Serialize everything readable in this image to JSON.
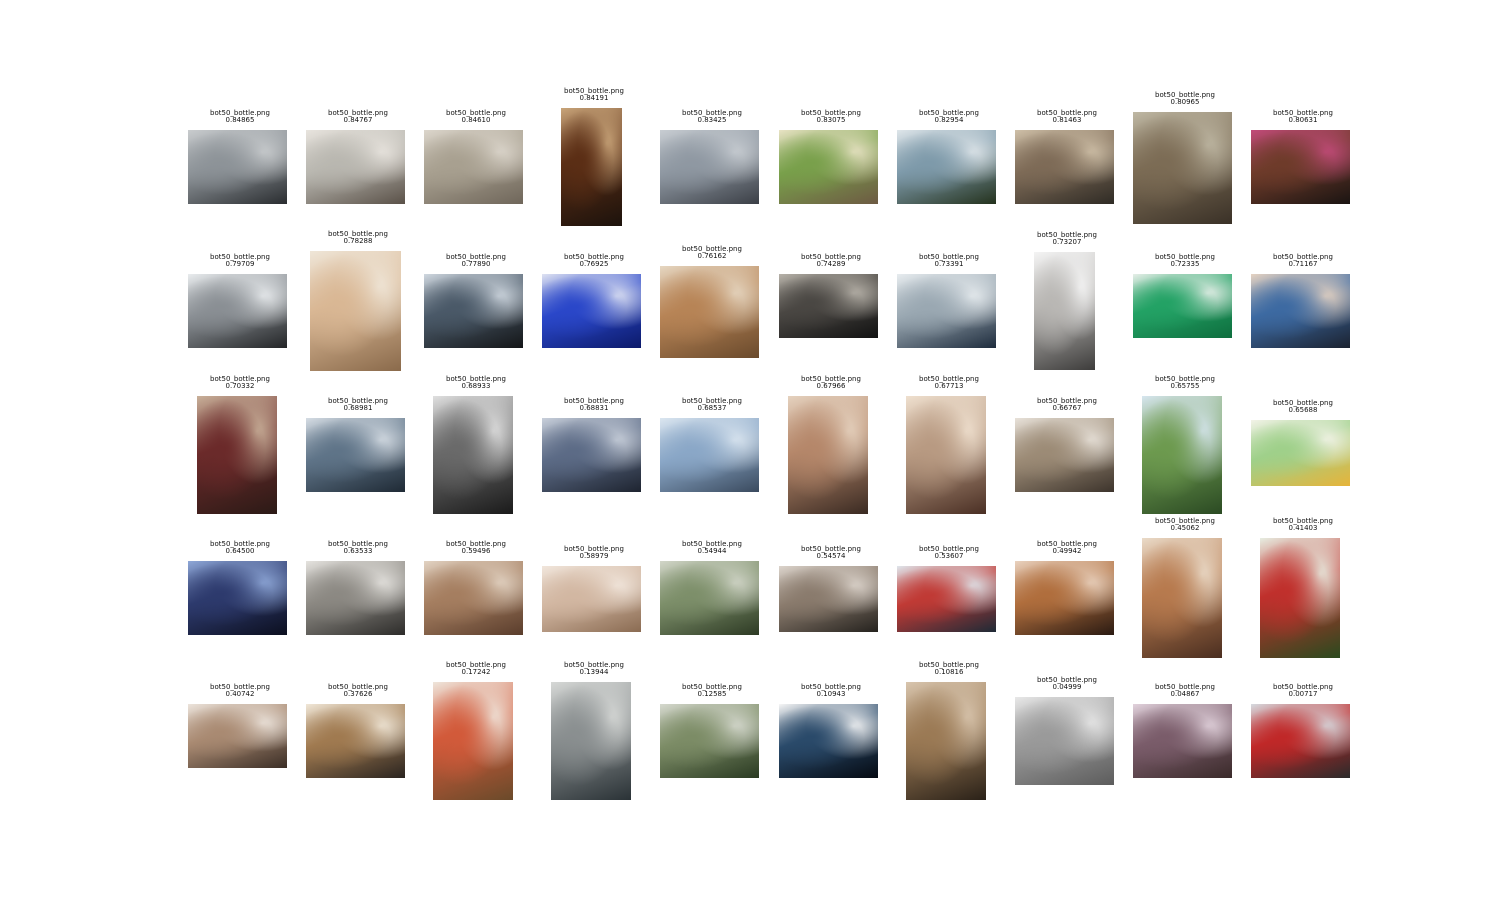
{
  "figure": {
    "items": [
      {
        "file": "bot50_bottle.png",
        "score": "0.84865",
        "shape": "land",
        "colors": [
          "#2a2d30",
          "#8d9398",
          "#c9ccce"
        ]
      },
      {
        "file": "bot50_bottle.png",
        "score": "0.84767",
        "shape": "land",
        "colors": [
          "#5a5148",
          "#b9b7b0",
          "#e8e4de"
        ]
      },
      {
        "file": "bot50_bottle.png",
        "score": "0.84610",
        "shape": "land",
        "colors": [
          "#6f665a",
          "#a8a090",
          "#dcd6cc"
        ]
      },
      {
        "file": "bot50_bottle.png",
        "score": "0.84191",
        "shape": "tall",
        "colors": [
          "#1c120c",
          "#5b2e15",
          "#c9a57a"
        ]
      },
      {
        "file": "bot50_bottle.png",
        "score": "0.83425",
        "shape": "land",
        "colors": [
          "#3b3f46",
          "#8f98a2",
          "#c8cdd2"
        ]
      },
      {
        "file": "bot50_bottle.png",
        "score": "0.83075",
        "shape": "land",
        "colors": [
          "#6d5a43",
          "#79a04b",
          "#e9e3c5"
        ]
      },
      {
        "file": "bot50_bottle.png",
        "score": "0.82954",
        "shape": "land",
        "colors": [
          "#24321d",
          "#7e9aaa",
          "#dfe6ea"
        ]
      },
      {
        "file": "bot50_bottle.png",
        "score": "0.81463",
        "shape": "land",
        "colors": [
          "#2f2b25",
          "#7e6b57",
          "#cfc0a8"
        ]
      },
      {
        "file": "bot50_bottle.png",
        "score": "0.80965",
        "shape": "mid",
        "colors": [
          "#3a3127",
          "#7c6c55",
          "#bfb8a4"
        ]
      },
      {
        "file": "bot50_bottle.png",
        "score": "0.80631",
        "shape": "land",
        "colors": [
          "#1a1412",
          "#6e3b2a",
          "#c24b7a"
        ]
      },
      {
        "file": "bot50_bottle.png",
        "score": "0.79709",
        "shape": "land",
        "colors": [
          "#232527",
          "#8a8f94",
          "#e9ecee"
        ]
      },
      {
        "file": "bot50_bottle.png",
        "score": "0.78288",
        "shape": "tall2",
        "colors": [
          "#8a6a4b",
          "#d9b794",
          "#efe6d8"
        ]
      },
      {
        "file": "bot50_bottle.png",
        "score": "0.77890",
        "shape": "land",
        "colors": [
          "#141618",
          "#4a5968",
          "#d0d8e0"
        ]
      },
      {
        "file": "bot50_bottle.png",
        "score": "0.76925",
        "shape": "land",
        "colors": [
          "#0c1a6a",
          "#2a47c9",
          "#dfe3f2"
        ]
      },
      {
        "file": "bot50_bottle.png",
        "score": "0.76162",
        "shape": "mid2",
        "colors": [
          "#6a4a2c",
          "#b78456",
          "#e6d7c2"
        ]
      },
      {
        "file": "bot50_bottle.png",
        "score": "0.74289",
        "shape": "land2",
        "colors": [
          "#121212",
          "#4a4743",
          "#b8b3aa"
        ]
      },
      {
        "file": "bot50_bottle.png",
        "score": "0.73391",
        "shape": "land",
        "colors": [
          "#1e2c3d",
          "#9aa8b2",
          "#e7ecef"
        ]
      },
      {
        "file": "bot50_bottle.png",
        "score": "0.73207",
        "shape": "tall",
        "colors": [
          "#3d3c3b",
          "#b9b7b4",
          "#f4f4f4"
        ]
      },
      {
        "file": "bot50_bottle.png",
        "score": "0.72335",
        "shape": "land2",
        "colors": [
          "#0e6e3e",
          "#23a265",
          "#e7efe9"
        ]
      },
      {
        "file": "bot50_bottle.png",
        "score": "0.71167",
        "shape": "land",
        "colors": [
          "#1b2230",
          "#3d6aa2",
          "#e6d3c2"
        ]
      },
      {
        "file": "bot50_bottle.png",
        "score": "0.70332",
        "shape": "tall3",
        "colors": [
          "#2b1a16",
          "#6b2a2a",
          "#c9b19a"
        ]
      },
      {
        "file": "bot50_bottle.png",
        "score": "0.68981",
        "shape": "land",
        "colors": [
          "#1f2a35",
          "#5f7488",
          "#d6dde4"
        ]
      },
      {
        "file": "bot50_bottle.png",
        "score": "0.68933",
        "shape": "tall3",
        "colors": [
          "#1a1a1a",
          "#6a6a6a",
          "#e0e0e0"
        ]
      },
      {
        "file": "bot50_bottle.png",
        "score": "0.68831",
        "shape": "land",
        "colors": [
          "#1e2430",
          "#5c6b86",
          "#c9d0db"
        ]
      },
      {
        "file": "bot50_bottle.png",
        "score": "0.68537",
        "shape": "land",
        "colors": [
          "#3a4a5e",
          "#8aa7c7",
          "#dbe6f0"
        ]
      },
      {
        "file": "bot50_bottle.png",
        "score": "0.67966",
        "shape": "tall3",
        "colors": [
          "#3a2a22",
          "#b5876a",
          "#e5d2bf"
        ]
      },
      {
        "file": "bot50_bottle.png",
        "score": "0.67713",
        "shape": "tall3",
        "colors": [
          "#4a2f24",
          "#b89a82",
          "#efe0cf"
        ]
      },
      {
        "file": "bot50_bottle.png",
        "score": "0.66767",
        "shape": "land",
        "colors": [
          "#3d342c",
          "#9c8b76",
          "#e8e2da"
        ]
      },
      {
        "file": "bot50_bottle.png",
        "score": "0.65755",
        "shape": "tall3",
        "colors": [
          "#2b4a23",
          "#6d9a4f",
          "#d7e6f0"
        ]
      },
      {
        "file": "bot50_bottle.png",
        "score": "0.65688",
        "shape": "land3",
        "colors": [
          "#e6b43a",
          "#9fd08a",
          "#f3f3e8"
        ]
      },
      {
        "file": "bot50_bottle.png",
        "score": "0.64500",
        "shape": "land",
        "colors": [
          "#0c0f1f",
          "#2d3a6d",
          "#8fa8d8"
        ]
      },
      {
        "file": "bot50_bottle.png",
        "score": "0.63533",
        "shape": "land",
        "colors": [
          "#2d2c2a",
          "#8c8983",
          "#e5e3df"
        ]
      },
      {
        "file": "bot50_bottle.png",
        "score": "0.59496",
        "shape": "land",
        "colors": [
          "#5a3d2c",
          "#a57e60",
          "#e2d3c3"
        ]
      },
      {
        "file": "bot50_bottle.png",
        "score": "0.58979",
        "shape": "land4",
        "colors": [
          "#8a6b52",
          "#d2b7a2",
          "#f1e6dc"
        ]
      },
      {
        "file": "bot50_bottle.png",
        "score": "0.54944",
        "shape": "land",
        "colors": [
          "#2d3a24",
          "#7d8f6a",
          "#d2d6c9"
        ]
      },
      {
        "file": "bot50_bottle.png",
        "score": "0.54574",
        "shape": "land4",
        "colors": [
          "#25221e",
          "#8a7b6d",
          "#dcd4cc"
        ]
      },
      {
        "file": "bot50_bottle.png",
        "score": "0.53607",
        "shape": "land4",
        "colors": [
          "#1e2a36",
          "#c03a35",
          "#dfe6ec"
        ]
      },
      {
        "file": "bot50_bottle.png",
        "score": "0.49942",
        "shape": "land",
        "colors": [
          "#2a1a12",
          "#b06e3d",
          "#e9d2bf"
        ]
      },
      {
        "file": "bot50_bottle.png",
        "score": "0.45062",
        "shape": "tall3b",
        "colors": [
          "#4a2e20",
          "#b77a4e",
          "#eadbc9"
        ]
      },
      {
        "file": "bot50_bottle.png",
        "score": "0.41403",
        "shape": "tall3b",
        "colors": [
          "#2a4a1e",
          "#c0302c",
          "#e7eee2"
        ]
      },
      {
        "file": "bot50_bottle.png",
        "score": "0.40742",
        "shape": "land2",
        "colors": [
          "#3b2e26",
          "#a98a72",
          "#ece4dc"
        ]
      },
      {
        "file": "bot50_bottle.png",
        "score": "0.37626",
        "shape": "land",
        "colors": [
          "#2a2420",
          "#a07a50",
          "#f0e7d8"
        ]
      },
      {
        "file": "bot50_bottle.png",
        "score": "0.17242",
        "shape": "tall3",
        "colors": [
          "#6a4a2a",
          "#d25a3a",
          "#efe6dc"
        ]
      },
      {
        "file": "bot50_bottle.png",
        "score": "0.13944",
        "shape": "tall3",
        "colors": [
          "#2a3236",
          "#8a8f90",
          "#d6d8d6"
        ]
      },
      {
        "file": "bot50_bottle.png",
        "score": "0.12585",
        "shape": "land",
        "colors": [
          "#2a3a22",
          "#7c8c66",
          "#d6d9cf"
        ]
      },
      {
        "file": "bot50_bottle.png",
        "score": "0.10943",
        "shape": "land",
        "colors": [
          "#050a12",
          "#2a4a6a",
          "#f6f6f6"
        ]
      },
      {
        "file": "bot50_bottle.png",
        "score": "0.10816",
        "shape": "tall3",
        "colors": [
          "#2a2118",
          "#9b7a55",
          "#d8c5ae"
        ]
      },
      {
        "file": "bot50_bottle.png",
        "score": "0.04999",
        "shape": "mid3",
        "colors": [
          "#5c5c5c",
          "#9a9a9a",
          "#e8e8e8"
        ]
      },
      {
        "file": "bot50_bottle.png",
        "score": "0.04867",
        "shape": "land",
        "colors": [
          "#3a2a2a",
          "#7a5c6a",
          "#e2d3dd"
        ]
      },
      {
        "file": "bot50_bottle.png",
        "score": "0.00717",
        "shape": "land",
        "colors": [
          "#2a2a2a",
          "#c02828",
          "#d6dbe0"
        ]
      }
    ]
  }
}
